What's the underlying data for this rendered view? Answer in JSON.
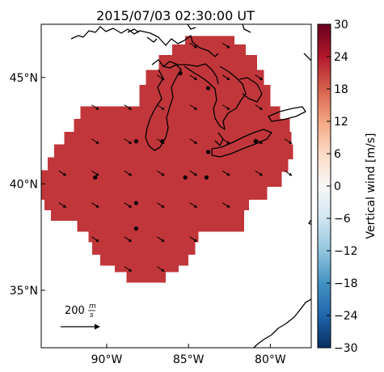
{
  "chart_data": {
    "type": "heatmap",
    "title": "2015/07/03 02:30:00 UT",
    "xlabel": "",
    "ylabel": "",
    "xlim": [
      -94.0,
      -77.5
    ],
    "ylim": [
      32.3,
      47.5
    ],
    "x_ticks": [
      "90°W",
      "85°W",
      "80°W"
    ],
    "x_tick_values": [
      -90,
      -85,
      -80
    ],
    "y_ticks": [
      "35°N",
      "40°N",
      "45°N"
    ],
    "y_tick_values": [
      35,
      40,
      45
    ],
    "field_color": "#c1363a",
    "field_value_approx": 23,
    "region": {
      "description_rows_lat_lonrange": [
        [
          46.9,
          -85.2,
          -82.2
        ],
        [
          46.5,
          -86.0,
          -81.5
        ],
        [
          46.0,
          -86.8,
          -80.8
        ],
        [
          45.3,
          -87.6,
          -80.4
        ],
        [
          44.6,
          -88.0,
          -80.0
        ],
        [
          43.6,
          -91.6,
          -79.4
        ],
        [
          43.0,
          -92.0,
          -78.8
        ],
        [
          42.4,
          -92.6,
          -78.7
        ],
        [
          41.8,
          -93.2,
          -78.6
        ],
        [
          41.2,
          -93.6,
          -78.9
        ],
        [
          40.6,
          -94.0,
          -79.3
        ],
        [
          39.9,
          -94.0,
          -80.2
        ],
        [
          39.3,
          -93.8,
          -81.3
        ],
        [
          38.8,
          -93.4,
          -81.6
        ],
        [
          38.3,
          -91.8,
          -81.6
        ],
        [
          37.8,
          -91.1,
          -84.4
        ],
        [
          37.3,
          -90.9,
          -84.6
        ],
        [
          36.7,
          -90.4,
          -85.0
        ],
        [
          36.2,
          -89.5,
          -85.6
        ],
        [
          35.9,
          -88.8,
          -86.4
        ]
      ]
    },
    "colorbar": {
      "label": "Vertical wind [m/s]",
      "min": -30,
      "max": 30,
      "ticks": [
        "30",
        "24",
        "18",
        "12",
        "6",
        "0",
        "−6",
        "−12",
        "−18",
        "−24",
        "−30"
      ],
      "tick_values": [
        30,
        24,
        18,
        12,
        6,
        0,
        -6,
        -12,
        -18,
        -24,
        -30
      ],
      "colormap": "RdBu_r"
    },
    "stations": [
      {
        "lon": -88.2,
        "lat": 42.0
      },
      {
        "lon": -86.6,
        "lat": 42.0
      },
      {
        "lon": -83.8,
        "lat": 44.5
      },
      {
        "lon": -85.5,
        "lat": 45.2
      },
      {
        "lon": -83.8,
        "lat": 41.5
      },
      {
        "lon": -80.9,
        "lat": 42.0
      },
      {
        "lon": -90.7,
        "lat": 40.3
      },
      {
        "lon": -85.2,
        "lat": 40.3
      },
      {
        "lon": -83.9,
        "lat": 40.3
      },
      {
        "lon": -88.2,
        "lat": 39.1
      },
      {
        "lon": -88.2,
        "lat": 37.9
      }
    ],
    "wind_vectors": {
      "lons": [
        -92.7,
        -90.7,
        -88.7,
        -86.7,
        -84.7,
        -82.7,
        -80.7,
        -78.9
      ],
      "lats": [
        46.5,
        45.0,
        43.6,
        42.0,
        40.5,
        39.0,
        37.4,
        36.0
      ],
      "direction": "southeast",
      "speed_m_s_approx": 200
    },
    "legend": {
      "reference_vector_label": "200 m/s",
      "numerator": "200",
      "unit_top": "m",
      "unit_bottom": "s",
      "position": "bottom-left"
    }
  }
}
